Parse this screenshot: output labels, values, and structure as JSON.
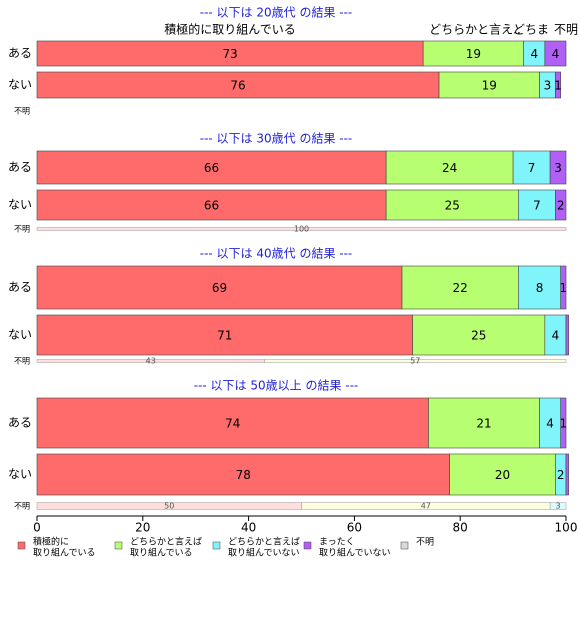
{
  "chart_data": {
    "type": "bar",
    "stacked": "horizontal-percent",
    "colors": {
      "c1": "#ff6b6b",
      "c2": "#b7ff70",
      "c3": "#7ff5fb",
      "c4": "#b060f5",
      "c5": "#d9d9d9",
      "title": "#1f1fdc",
      "unknown_fill": "#ffdede",
      "unknown_fill2": "#ffffdf",
      "unknown_fill3": "#dffbff"
    },
    "series_names": [
      "積極的に取り組んでいる",
      "どちらかと言えば取り組んでいる",
      "どちらかと言えば取り組んでいない",
      "まったく取り組んでいない",
      "不明"
    ],
    "header_labels": [
      "積極的に取り組んでいる",
      "どちらかと言え..",
      "どちま",
      "不明"
    ],
    "panels": [
      {
        "title": "--- 以下は 20歳代 の結果 ---",
        "rows": [
          {
            "label": "ある",
            "values": [
              73,
              19,
              4,
              4,
              0
            ]
          },
          {
            "label": "ない",
            "values": [
              76,
              19,
              3,
              1,
              0
            ]
          }
        ],
        "unknown": {
          "label": "不明",
          "values": []
        }
      },
      {
        "title": "--- 以下は 30歳代 の結果 ---",
        "rows": [
          {
            "label": "ある",
            "values": [
              66,
              24,
              7,
              3,
              0
            ]
          },
          {
            "label": "ない",
            "values": [
              66,
              25,
              7,
              2,
              0
            ]
          }
        ],
        "unknown": {
          "label": "不明",
          "values": [
            100
          ]
        }
      },
      {
        "title": "--- 以下は 40歳代 の結果 ---",
        "rows": [
          {
            "label": "ある",
            "values": [
              69,
              22,
              8,
              1,
              0
            ]
          },
          {
            "label": "ない",
            "values": [
              71,
              25,
              4,
              0.5,
              0
            ]
          }
        ],
        "unknown": {
          "label": "不明",
          "values": [
            43,
            57
          ]
        }
      },
      {
        "title": "--- 以下は 50歳以上 の結果 ---",
        "rows": [
          {
            "label": "ある",
            "values": [
              74,
              21,
              4,
              1,
              0
            ]
          },
          {
            "label": "ない",
            "values": [
              78,
              20,
              2,
              0.5,
              0
            ]
          }
        ],
        "unknown": {
          "label": "不明",
          "values": [
            50,
            47,
            3
          ]
        }
      }
    ],
    "xaxis": {
      "ticks": [
        0,
        20,
        40,
        60,
        80,
        100
      ],
      "xlim": [
        0,
        100
      ]
    },
    "legend": {
      "position": "bottom",
      "items": [
        {
          "line1": "積極的に",
          "line2": "取り組んでいる"
        },
        {
          "line1": "どちらかと言えば",
          "line2": "取り組んでいる"
        },
        {
          "line1": "どちらかと言えば",
          "line2": "取り組んでいない"
        },
        {
          "line1": "まったく",
          "line2": "取り組んでいない"
        },
        {
          "line1": "不明",
          "line2": ""
        }
      ]
    }
  }
}
